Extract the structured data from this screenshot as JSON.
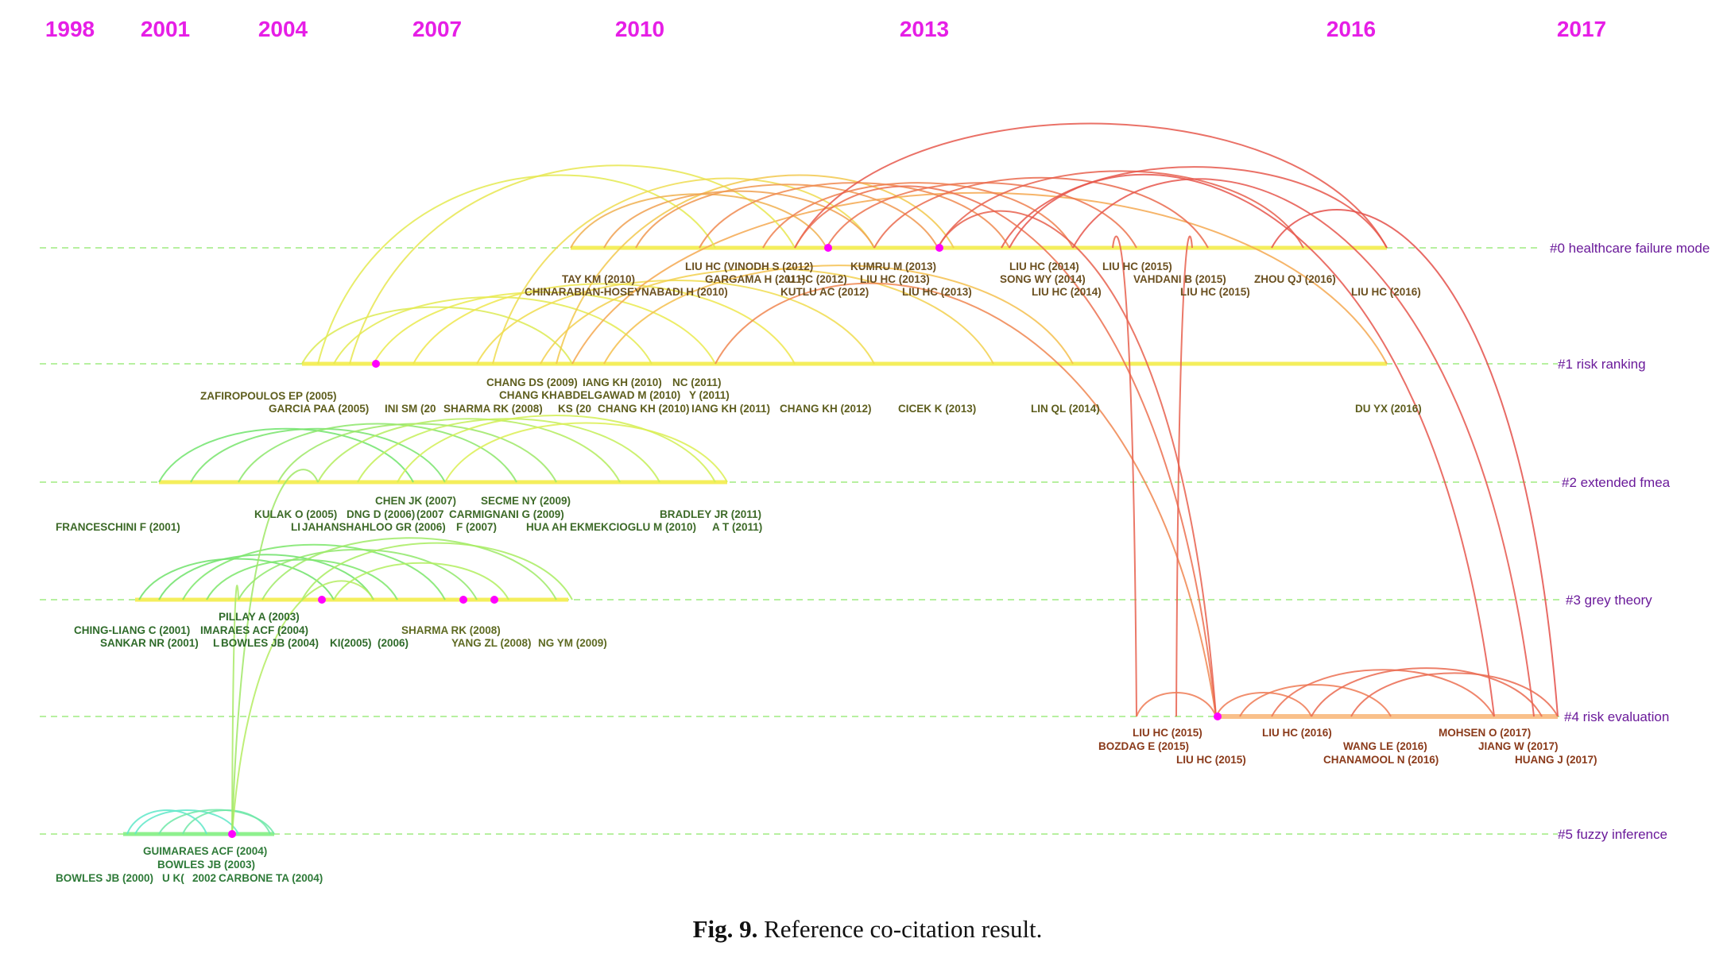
{
  "colors": {
    "year": "#e61ee6",
    "row_label": "#6a1a9a",
    "node_dot": "#ff00ff",
    "row_bg_dashed": "#b7f0a0",
    "row_line_warm": "#f4ee5c",
    "row_line_eval": "#f9c08a",
    "row_line_fuzzy": "#8ef08e",
    "label_green": "#2f6b2a",
    "label_olive": "#6b6b20",
    "label_brown": "#7a4a1a"
  },
  "years": [
    "1998",
    "2001",
    "2004",
    "2007",
    "2010",
    "2013",
    "2016",
    "2017"
  ],
  "clusters": [
    {
      "label": "#0 healthcare failure mode"
    },
    {
      "label": "#1 risk ranking"
    },
    {
      "label": "#2 extended fmea"
    },
    {
      "label": "#3 grey theory"
    },
    {
      "label": "#4 risk evaluation"
    },
    {
      "label": "#5 fuzzy inference"
    }
  ],
  "node_labels": [
    "TAY KM (2010)",
    "CHINARABIAN-HOSEYNABADI H (2010)",
    "GARGAMA H (2011)",
    "LIU HC (VINODH S (2012)",
    "U HC (2012)",
    "KUTLU AC (2012)",
    "KUMRU M (2013)",
    "LIU HC (2013)",
    "LIU HC (2013)",
    "LIU HC (2014)",
    "SONG WY (2014)",
    "LIU HC (2014)",
    "LIU HC (2015)",
    "VAHDANI B (2015)",
    "LIU HC (2015)",
    "ZHOU QJ (2016)",
    "LIU HC (2016)",
    "ZAFIROPOULOS EP (2005)",
    "GARCIA PAA (2005)",
    "INI SM (20",
    "SHARMA RK (2008)",
    "KS (20",
    "CHANG DS (2009)",
    "IANG KH (2010)",
    "NC (2011)",
    "CHANG KH",
    "ABDELGAWAD M (2010)",
    "Y (2011)",
    "CHANG KH (2010)",
    "IANG KH (2011)",
    "CHANG KH (2012)",
    "CICEK K (2013)",
    "LIN QL (2014)",
    "DU YX (2016)",
    "FRANCESCHINI F (2001)",
    "KULAK O (2005)",
    "DNG D (2006)",
    "(2007",
    "CHEN JK (2007)",
    "CARMIGNANI G (2009)",
    "SECME NY (2009)",
    "LI",
    "JAHANSHAHLOO GR (2006)",
    "F (2007)",
    "HUA AH",
    "EKMEKCIOGLU M (2010)",
    "A T (2011)",
    "BRADLEY JR (2011)",
    "CHING-LIANG C (2001)",
    "IMARAES ACF (2004)",
    "PILLAY A (2003)",
    "SANKAR NR (2001)",
    "L",
    "BOWLES JB (2004)",
    "KI(2005)",
    "(2006)",
    "SHARMA RK (2008)",
    "YANG ZL (2008)",
    "NG YM (2009)",
    "LIU HC (2015)",
    "BOZDAG E (2015)",
    "LIU HC (2015)",
    "LIU HC (2016)",
    "WANG LE (2016)",
    "CHANAMOOL N (2016)",
    "MOHSEN O (2017)",
    "JIANG W (2017)",
    "HUANG J (2017)",
    "GUIMARAES ACF (2004)",
    "BOWLES JB (2003)",
    "BOWLES JB (2000)",
    "U K(",
    "2002",
    "CARBONE TA (2004)"
  ],
  "caption": {
    "label": "Fig. 9.",
    "text": "Reference co-citation result."
  }
}
